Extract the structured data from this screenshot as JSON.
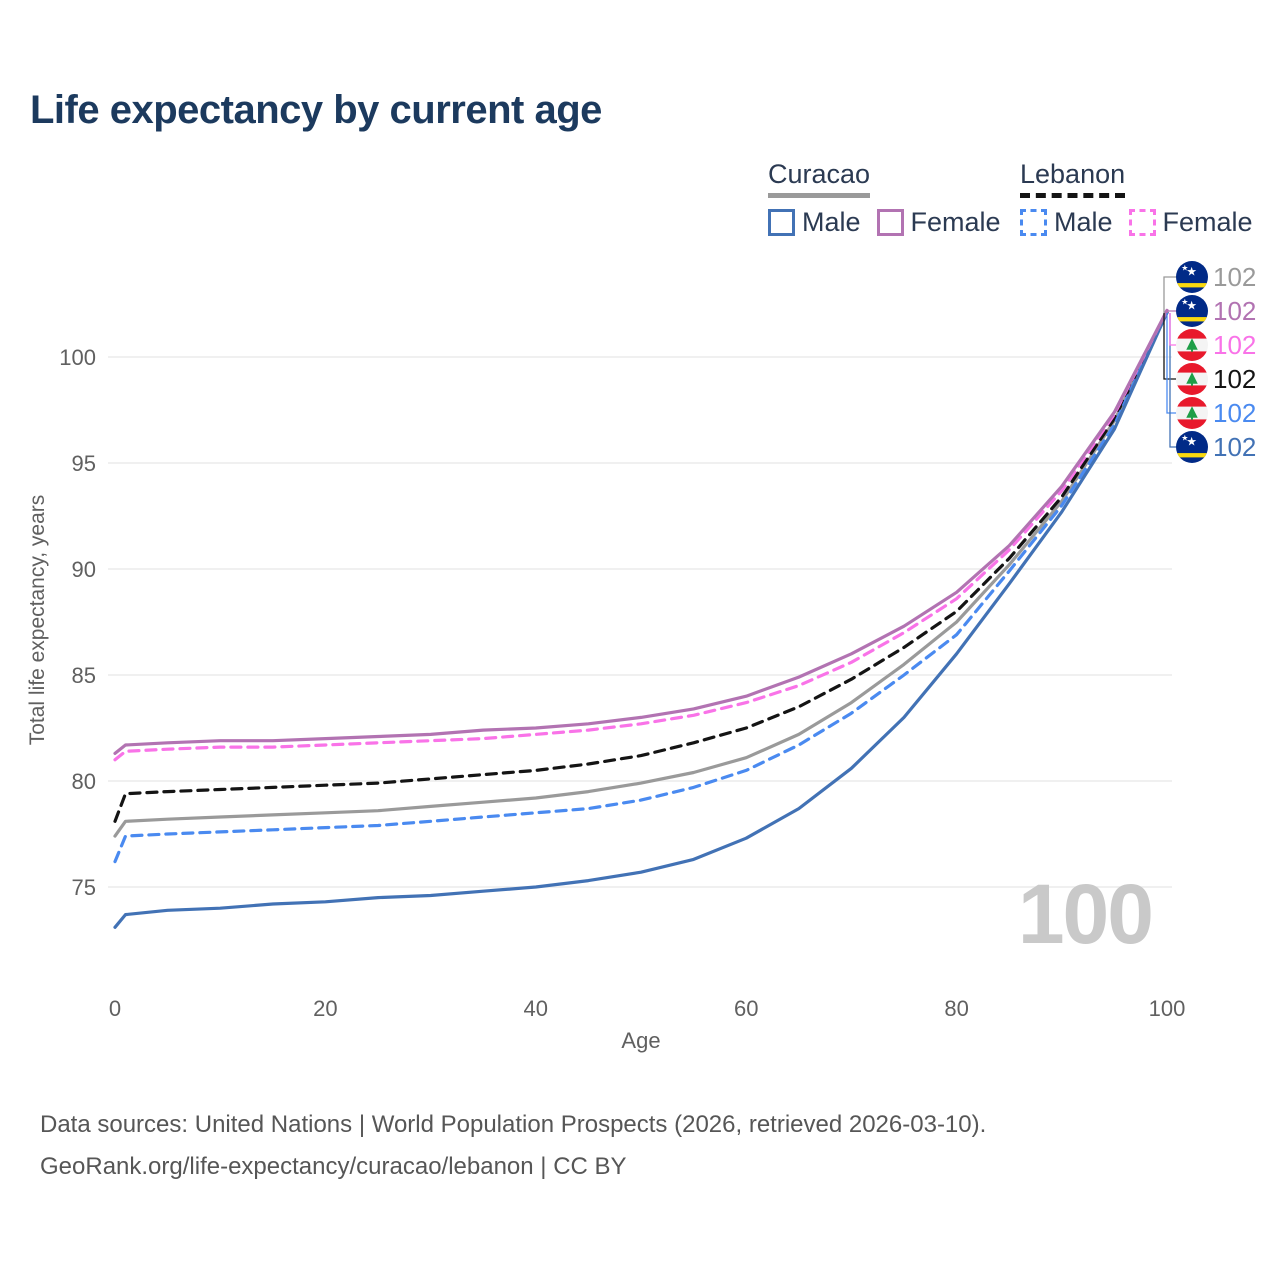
{
  "title": "Life expectancy by current age",
  "colors": {
    "title_text": "#1c3a5e",
    "legend_text": "#2b3a52",
    "axis_text": "#606060",
    "grid": "#ececec",
    "watermark": "#c9c9c9",
    "footer_text": "#565656"
  },
  "legend": {
    "groups": [
      {
        "label": "Curacao",
        "line_style": "solid",
        "line_color": "#9a9a9a",
        "items": [
          {
            "label": "Male",
            "color": "#4272b5",
            "style": "solid"
          },
          {
            "label": "Female",
            "color": "#b273b2",
            "style": "solid"
          }
        ]
      },
      {
        "label": "Lebanon",
        "line_style": "dashed",
        "line_color": "#141414",
        "items": [
          {
            "label": "Male",
            "color": "#4a8af0",
            "style": "dashed"
          },
          {
            "label": "Female",
            "color": "#f973e8",
            "style": "dashed"
          }
        ]
      }
    ]
  },
  "watermark_age": "100",
  "footer": {
    "line1": "Data sources: United Nations | World Population Prospects (2026, retrieved 2026-03-10).",
    "line2": "GeoRank.org/life-expectancy/curacao/lebanon | CC BY"
  },
  "flags": {
    "curacao": {
      "field": "#012a87",
      "stripe": "#f9d90f",
      "star": "#ffffff"
    },
    "lebanon": {
      "band": "#e8192c",
      "field": "#f4f4f4",
      "cedar": "#1e9e48"
    }
  },
  "chart_data": {
    "type": "line",
    "title": "Life expectancy by current age",
    "xlabel": "Age",
    "ylabel": "Total life expectancy, years",
    "x_ticks": [
      0,
      20,
      40,
      60,
      80,
      100
    ],
    "y_ticks": [
      75,
      80,
      85,
      90,
      95,
      100
    ],
    "xlim": [
      0,
      100
    ],
    "ylim": [
      73,
      102.5
    ],
    "grid": "horizontal",
    "legend_position": "top-right",
    "ages": [
      0,
      1,
      5,
      10,
      15,
      20,
      25,
      30,
      35,
      40,
      45,
      50,
      55,
      60,
      65,
      70,
      75,
      80,
      85,
      90,
      95,
      100
    ],
    "series": [
      {
        "name": "Curacao Total",
        "country": "Curacao",
        "sex": "Total",
        "color": "#9a9a9a",
        "dash": "solid",
        "flag": "curacao",
        "end_label": "102",
        "label_row": 0,
        "values": [
          77.4,
          78.1,
          78.2,
          78.3,
          78.4,
          78.5,
          78.6,
          78.8,
          79.0,
          79.2,
          79.5,
          79.9,
          80.4,
          81.1,
          82.2,
          83.7,
          85.5,
          87.5,
          90.2,
          93.2,
          97.0,
          102.1
        ]
      },
      {
        "name": "Lebanon Total",
        "country": "Lebanon",
        "sex": "Total",
        "color": "#141414",
        "dash": "dashed",
        "flag": "lebanon",
        "end_label": "102",
        "label_row": 3,
        "values": [
          78.1,
          79.4,
          79.5,
          79.6,
          79.7,
          79.8,
          79.9,
          80.1,
          80.3,
          80.5,
          80.8,
          81.2,
          81.8,
          82.5,
          83.5,
          84.8,
          86.3,
          88.0,
          90.5,
          93.4,
          97.1,
          102.1
        ]
      },
      {
        "name": "Lebanon Male",
        "country": "Lebanon",
        "sex": "Male",
        "color": "#4a8af0",
        "dash": "dashed",
        "flag": "lebanon",
        "end_label": "102",
        "label_row": 4,
        "values": [
          76.2,
          77.4,
          77.5,
          77.6,
          77.7,
          77.8,
          77.9,
          78.1,
          78.3,
          78.5,
          78.7,
          79.1,
          79.7,
          80.5,
          81.7,
          83.2,
          85.0,
          86.9,
          89.9,
          93.0,
          96.8,
          102.1
        ]
      },
      {
        "name": "Curacao Male",
        "country": "Curacao",
        "sex": "Male",
        "color": "#4272b5",
        "dash": "solid",
        "flag": "curacao",
        "end_label": "102",
        "label_row": 5,
        "values": [
          73.1,
          73.7,
          73.9,
          74.0,
          74.2,
          74.3,
          74.5,
          74.6,
          74.8,
          75.0,
          75.3,
          75.7,
          76.3,
          77.3,
          78.7,
          80.6,
          83.0,
          86.0,
          89.3,
          92.7,
          96.6,
          102.1
        ]
      },
      {
        "name": "Lebanon Female",
        "country": "Lebanon",
        "sex": "Female",
        "color": "#f973e8",
        "dash": "dashed",
        "flag": "lebanon",
        "end_label": "102",
        "label_row": 2,
        "values": [
          81.0,
          81.4,
          81.5,
          81.6,
          81.6,
          81.7,
          81.8,
          81.9,
          82.0,
          82.2,
          82.4,
          82.7,
          83.1,
          83.7,
          84.5,
          85.6,
          87.0,
          88.6,
          90.9,
          93.7,
          97.3,
          102.2
        ]
      },
      {
        "name": "Curacao Female",
        "country": "Curacao",
        "sex": "Female",
        "color": "#b273b2",
        "dash": "solid",
        "flag": "curacao",
        "end_label": "102",
        "label_row": 1,
        "values": [
          81.3,
          81.7,
          81.8,
          81.9,
          81.9,
          82.0,
          82.1,
          82.2,
          82.4,
          82.5,
          82.7,
          83.0,
          83.4,
          84.0,
          84.9,
          86.0,
          87.3,
          88.9,
          91.1,
          93.9,
          97.4,
          102.2
        ]
      }
    ]
  }
}
